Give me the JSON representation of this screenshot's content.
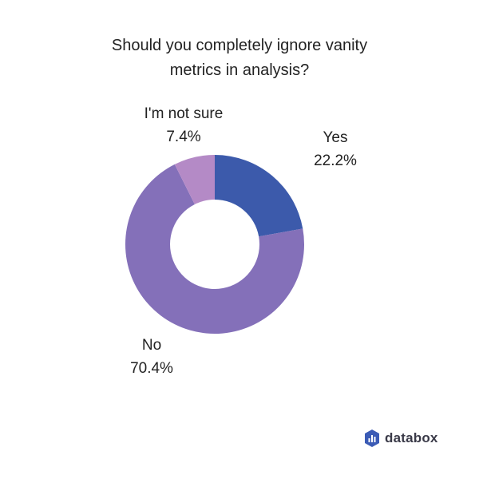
{
  "title": {
    "line1": "Should you completely ignore vanity",
    "line2": "metrics in analysis?"
  },
  "labels": {
    "yes": {
      "name": "Yes",
      "value": "22.2%"
    },
    "not_sure": {
      "name": "I'm not sure",
      "value": "7.4%"
    },
    "no": {
      "name": "No",
      "value": "70.4%"
    }
  },
  "brand": {
    "name": "databox",
    "icon": "databox-logo-icon",
    "color": "#3b5bb5"
  },
  "colors": {
    "yes": "#3c5aab",
    "no": "#8470b9",
    "not_sure": "#b48ac6"
  },
  "chart_data": {
    "type": "pie",
    "variant": "donut",
    "title": "Should you completely ignore vanity metrics in analysis?",
    "categories": [
      "Yes",
      "No",
      "I'm not sure"
    ],
    "values": [
      22.2,
      70.4,
      7.4
    ],
    "unit": "%",
    "colors": [
      "#3c5aab",
      "#8470b9",
      "#b48ac6"
    ],
    "start_angle": "12 o'clock, clockwise",
    "legend": "none (direct labels)"
  }
}
